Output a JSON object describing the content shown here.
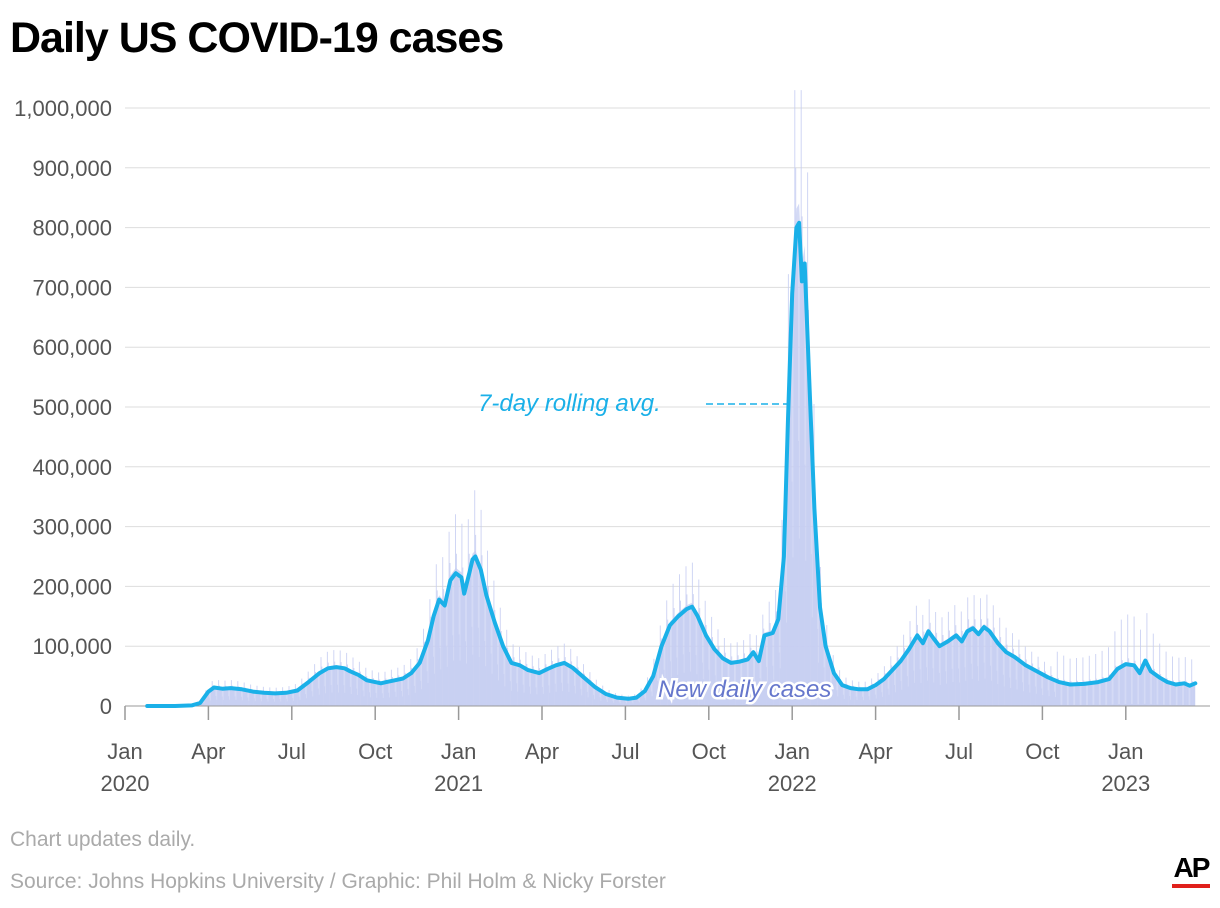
{
  "chart_data": {
    "type": "bar+line",
    "title": "Daily US COVID-19 cases",
    "ylim": [
      0,
      1000000
    ],
    "y_ticks": [
      {
        "value": 0,
        "label": "0"
      },
      {
        "value": 100000,
        "label": "100,000"
      },
      {
        "value": 200000,
        "label": "200,000"
      },
      {
        "value": 300000,
        "label": "300,000"
      },
      {
        "value": 400000,
        "label": "400,000"
      },
      {
        "value": 500000,
        "label": "500,000"
      },
      {
        "value": 600000,
        "label": "600,000"
      },
      {
        "value": 700000,
        "label": "700,000"
      },
      {
        "value": 800000,
        "label": "800,000"
      },
      {
        "value": 900000,
        "label": "900,000"
      },
      {
        "value": 1000000,
        "label": "1,000,000"
      }
    ],
    "x_range_months": [
      0,
      38.6
    ],
    "x_ticks": [
      {
        "month": 0,
        "label": "Jan",
        "year": "2020"
      },
      {
        "month": 3,
        "label": "Apr",
        "year": ""
      },
      {
        "month": 6,
        "label": "Jul",
        "year": ""
      },
      {
        "month": 9,
        "label": "Oct",
        "year": ""
      },
      {
        "month": 12,
        "label": "Jan",
        "year": "2021"
      },
      {
        "month": 15,
        "label": "Apr",
        "year": ""
      },
      {
        "month": 18,
        "label": "Jul",
        "year": ""
      },
      {
        "month": 21,
        "label": "Oct",
        "year": ""
      },
      {
        "month": 24,
        "label": "Jan",
        "year": "2022"
      },
      {
        "month": 27,
        "label": "Apr",
        "year": ""
      },
      {
        "month": 30,
        "label": "Jul",
        "year": ""
      },
      {
        "month": 33,
        "label": "Oct",
        "year": ""
      },
      {
        "month": 36,
        "label": "Jan",
        "year": "2023"
      }
    ],
    "series": [
      {
        "name": "7-day rolling avg.",
        "color": "#1ab0e8",
        "points": [
          [
            0.8,
            0
          ],
          [
            1.8,
            0
          ],
          [
            2.4,
            1000
          ],
          [
            2.7,
            5000
          ],
          [
            3.0,
            24000
          ],
          [
            3.2,
            31000
          ],
          [
            3.5,
            29000
          ],
          [
            3.8,
            30000
          ],
          [
            4.2,
            28000
          ],
          [
            4.6,
            24000
          ],
          [
            5.0,
            22000
          ],
          [
            5.4,
            21000
          ],
          [
            5.8,
            22000
          ],
          [
            6.2,
            26000
          ],
          [
            6.6,
            40000
          ],
          [
            7.0,
            55000
          ],
          [
            7.3,
            63000
          ],
          [
            7.6,
            65000
          ],
          [
            7.9,
            63000
          ],
          [
            8.1,
            58000
          ],
          [
            8.4,
            52000
          ],
          [
            8.7,
            43000
          ],
          [
            9.0,
            40000
          ],
          [
            9.2,
            38000
          ],
          [
            9.4,
            40000
          ],
          [
            9.7,
            43000
          ],
          [
            10.0,
            46000
          ],
          [
            10.3,
            55000
          ],
          [
            10.6,
            72000
          ],
          [
            10.9,
            110000
          ],
          [
            11.1,
            150000
          ],
          [
            11.3,
            178000
          ],
          [
            11.5,
            168000
          ],
          [
            11.7,
            210000
          ],
          [
            11.9,
            222000
          ],
          [
            12.1,
            215000
          ],
          [
            12.2,
            188000
          ],
          [
            12.4,
            225000
          ],
          [
            12.5,
            245000
          ],
          [
            12.6,
            250000
          ],
          [
            12.8,
            228000
          ],
          [
            13.0,
            185000
          ],
          [
            13.3,
            140000
          ],
          [
            13.6,
            100000
          ],
          [
            13.9,
            72000
          ],
          [
            14.2,
            68000
          ],
          [
            14.5,
            60000
          ],
          [
            14.9,
            55000
          ],
          [
            15.2,
            62000
          ],
          [
            15.5,
            68000
          ],
          [
            15.8,
            72000
          ],
          [
            16.1,
            64000
          ],
          [
            16.5,
            48000
          ],
          [
            16.9,
            32000
          ],
          [
            17.3,
            20000
          ],
          [
            17.7,
            14000
          ],
          [
            18.1,
            12000
          ],
          [
            18.4,
            14000
          ],
          [
            18.7,
            25000
          ],
          [
            19.0,
            50000
          ],
          [
            19.3,
            100000
          ],
          [
            19.6,
            135000
          ],
          [
            19.9,
            150000
          ],
          [
            20.2,
            162000
          ],
          [
            20.4,
            166000
          ],
          [
            20.6,
            150000
          ],
          [
            20.9,
            118000
          ],
          [
            21.2,
            95000
          ],
          [
            21.5,
            80000
          ],
          [
            21.8,
            72000
          ],
          [
            22.1,
            74000
          ],
          [
            22.4,
            78000
          ],
          [
            22.6,
            90000
          ],
          [
            22.8,
            75000
          ],
          [
            23.0,
            118000
          ],
          [
            23.3,
            122000
          ],
          [
            23.5,
            145000
          ],
          [
            23.7,
            250000
          ],
          [
            23.85,
            480000
          ],
          [
            24.0,
            690000
          ],
          [
            24.15,
            800000
          ],
          [
            24.25,
            808000
          ],
          [
            24.35,
            710000
          ],
          [
            24.45,
            740000
          ],
          [
            24.6,
            560000
          ],
          [
            24.8,
            330000
          ],
          [
            25.0,
            165000
          ],
          [
            25.2,
            100000
          ],
          [
            25.5,
            55000
          ],
          [
            25.8,
            35000
          ],
          [
            26.1,
            30000
          ],
          [
            26.4,
            28000
          ],
          [
            26.7,
            28000
          ],
          [
            27.0,
            35000
          ],
          [
            27.3,
            45000
          ],
          [
            27.6,
            60000
          ],
          [
            27.9,
            75000
          ],
          [
            28.2,
            95000
          ],
          [
            28.5,
            118000
          ],
          [
            28.7,
            105000
          ],
          [
            28.9,
            125000
          ],
          [
            29.1,
            112000
          ],
          [
            29.3,
            100000
          ],
          [
            29.6,
            108000
          ],
          [
            29.9,
            118000
          ],
          [
            30.1,
            108000
          ],
          [
            30.3,
            125000
          ],
          [
            30.5,
            130000
          ],
          [
            30.7,
            120000
          ],
          [
            30.9,
            132000
          ],
          [
            31.1,
            125000
          ],
          [
            31.4,
            105000
          ],
          [
            31.7,
            90000
          ],
          [
            32.0,
            82000
          ],
          [
            32.4,
            68000
          ],
          [
            32.8,
            58000
          ],
          [
            33.2,
            48000
          ],
          [
            33.6,
            40000
          ],
          [
            34.0,
            36000
          ],
          [
            34.5,
            37000
          ],
          [
            35.0,
            40000
          ],
          [
            35.4,
            45000
          ],
          [
            35.7,
            62000
          ],
          [
            36.0,
            70000
          ],
          [
            36.3,
            68000
          ],
          [
            36.5,
            55000
          ],
          [
            36.7,
            76000
          ],
          [
            36.9,
            58000
          ],
          [
            37.2,
            48000
          ],
          [
            37.5,
            40000
          ],
          [
            37.8,
            36000
          ],
          [
            38.1,
            38000
          ],
          [
            38.3,
            34000
          ],
          [
            38.5,
            38000
          ]
        ]
      },
      {
        "name": "New daily cases",
        "color": "#c5cdf2"
      }
    ],
    "annotations": [
      {
        "text": "7-day rolling avg.",
        "series": "7-day rolling avg.",
        "at_month": 24.0,
        "at_value": 505000,
        "color": "#1ab0e8"
      },
      {
        "text": "New daily cases",
        "series": "New daily cases",
        "color": "#6677cc"
      }
    ],
    "grid": true
  },
  "footer": {
    "note": "Chart updates daily.",
    "source": "Source: Johns Hopkins University / Graphic: Phil Holm & Nicky Forster",
    "logo_text": "AP"
  }
}
